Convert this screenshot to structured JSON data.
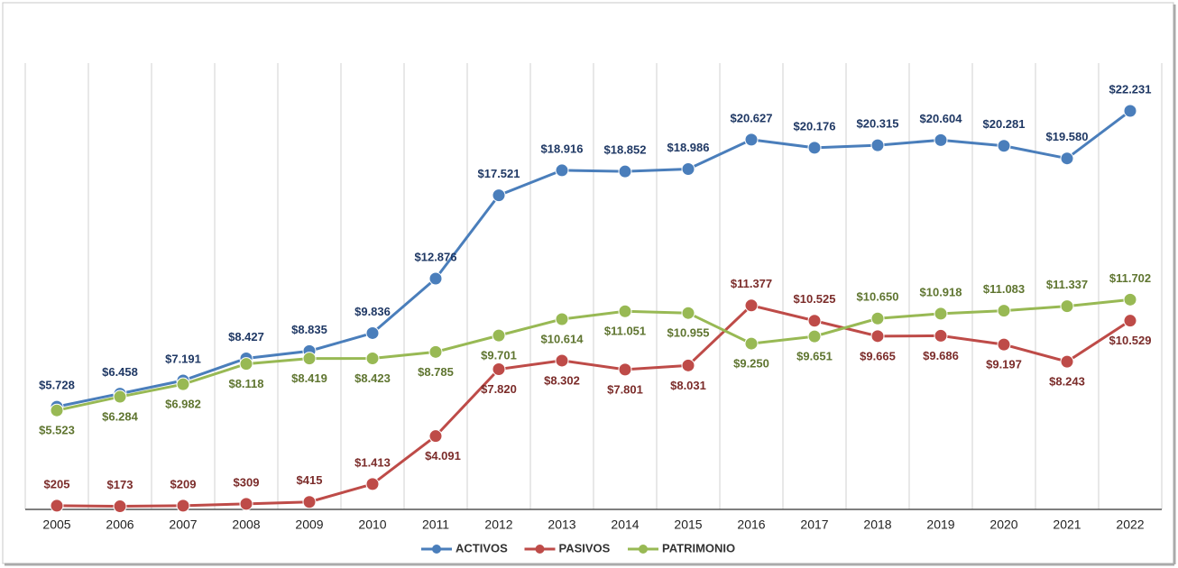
{
  "chart_data": {
    "type": "line",
    "categories": [
      "2005",
      "2006",
      "2007",
      "2008",
      "2009",
      "2010",
      "2011",
      "2012",
      "2013",
      "2014",
      "2015",
      "2016",
      "2017",
      "2018",
      "2019",
      "2020",
      "2021",
      "2022"
    ],
    "series": [
      {
        "name": "ACTIVOS",
        "color": "#4a7ebb",
        "label_color": "#1f3864",
        "values": [
          5728,
          6458,
          7191,
          8427,
          8835,
          9836,
          12876,
          17521,
          18916,
          18852,
          18986,
          20627,
          20176,
          20315,
          20604,
          20281,
          19580,
          22231
        ],
        "value_labels": [
          "$5.728",
          "$6.458",
          "$7.191",
          "$8.427",
          "$8.835",
          "$9.836",
          "$12.876",
          "$17.521",
          "$18.916",
          "$18.852",
          "$18.986",
          "$20.627",
          "$20.176",
          "$20.315",
          "$20.604",
          "$20.281",
          "$19.580",
          "$22.231"
        ]
      },
      {
        "name": "PASIVOS",
        "color": "#be4b48",
        "label_color": "#7b2c2a",
        "values": [
          205,
          173,
          209,
          309,
          415,
          1413,
          4091,
          7820,
          8302,
          7801,
          8031,
          11377,
          10525,
          9665,
          9686,
          9197,
          8243,
          10529
        ],
        "value_labels": [
          "$205",
          "$173",
          "$209",
          "$309",
          "$415",
          "$1.413",
          "$4.091",
          "$7.820",
          "$8.302",
          "$7.801",
          "$8.031",
          "$11.377",
          "$10.525",
          "$9.665",
          "$9.686",
          "$9.197",
          "$8.243",
          "$10.529"
        ]
      },
      {
        "name": "PATRIMONIO",
        "color": "#98b954",
        "label_color": "#5f7530",
        "values": [
          5523,
          6284,
          6982,
          8118,
          8419,
          8423,
          8785,
          9701,
          10614,
          11051,
          10955,
          9250,
          9651,
          10650,
          10918,
          11083,
          11337,
          11702
        ],
        "value_labels": [
          "$5.523",
          "$6.284",
          "$6.982",
          "$8.118",
          "$8.419",
          "$8.423",
          "$8.785",
          "$9.701",
          "$10.614",
          "$11.051",
          "$10.955",
          "$9.250",
          "$9.651",
          "$10.650",
          "$10.918",
          "$11.083",
          "$11.337",
          "$11.702"
        ]
      }
    ],
    "legend": "bottom",
    "grid": "vertical"
  }
}
